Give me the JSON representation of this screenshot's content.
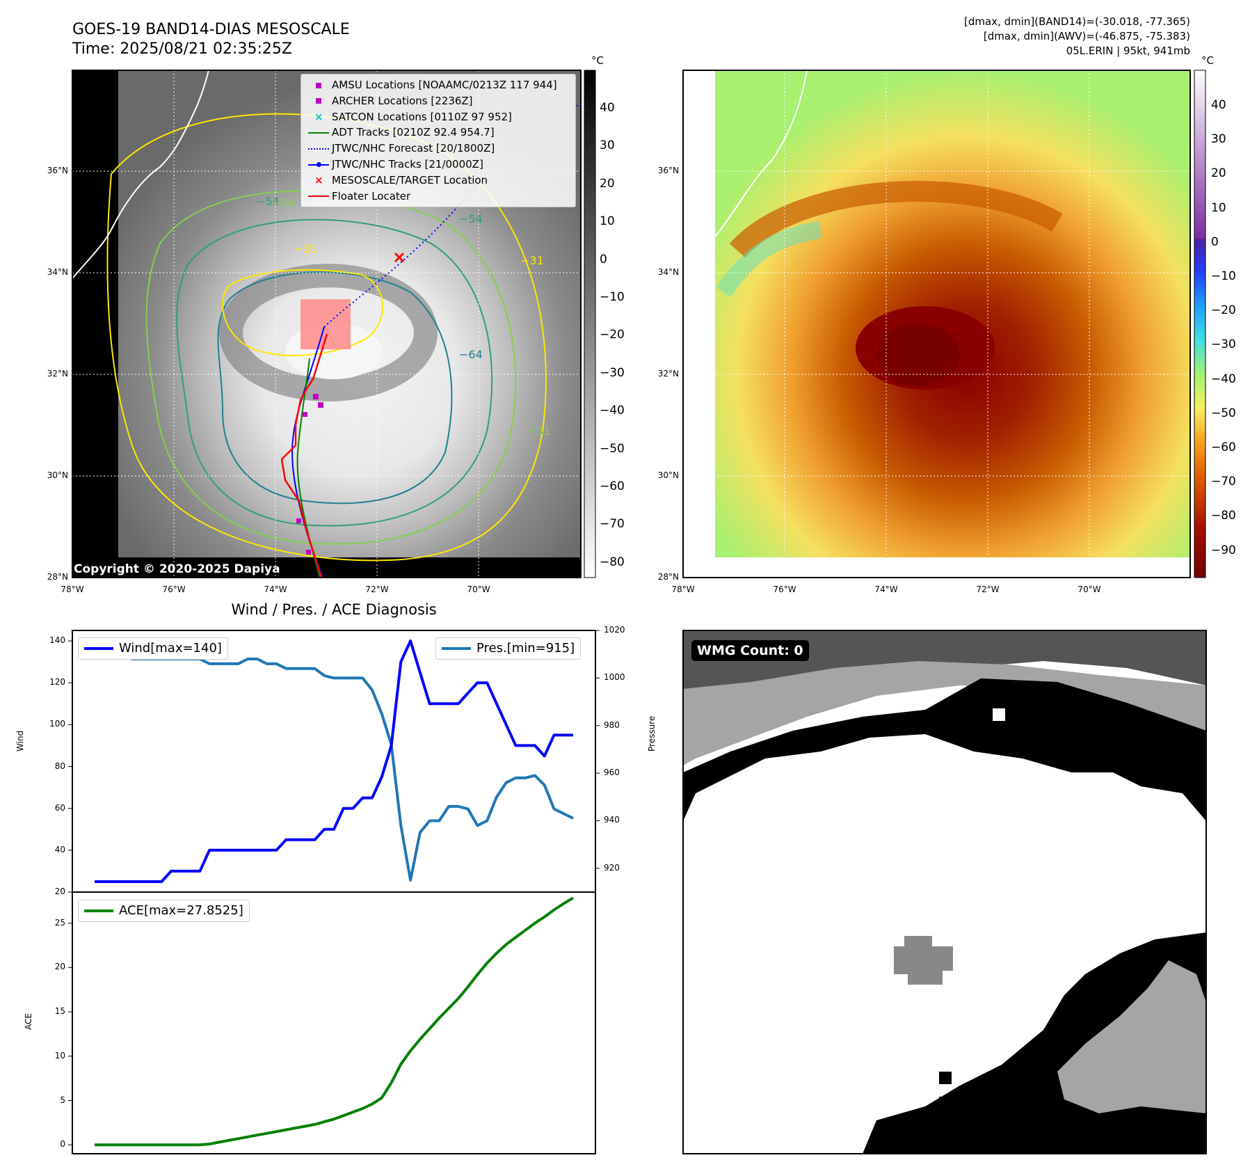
{
  "header": {
    "title_line1": "GOES-19 BAND14-DIAS MESOSCALE",
    "title_line2": "Time: 2025/08/21 02:35:25Z",
    "info_line1": "[dmax, dmin](BAND14)=(-30.018, -77.365)",
    "info_line2": "[dmax, dmin](AWV)=(-46.875, -75.383)",
    "info_line3": "05L.ERIN | 95kt, 941mb"
  },
  "map": {
    "lat_ticks": [
      "36°N",
      "34°N",
      "32°N",
      "30°N",
      "28°N"
    ],
    "lon_ticks": [
      "78°W",
      "76°W",
      "74°W",
      "72°W",
      "70°W"
    ],
    "copyright": "Copyright © 2020-2025 Dapiya",
    "contour_labels": [
      "−54",
      "−54",
      "−31",
      "−31",
      "−54",
      "−64",
      "−31"
    ],
    "legend": [
      {
        "label": "AMSU Locations [NOAAMC/0213Z 117 944]",
        "marker": "square",
        "color": "#c000c0"
      },
      {
        "label": "ARCHER Locations [2236Z]",
        "marker": "square",
        "color": "#c000c0"
      },
      {
        "label": "SATCON Locations [0110Z 97 952]",
        "marker": "x",
        "color": "#00c0c0"
      },
      {
        "label": "ADT Tracks [0210Z 92.4 954.7]",
        "marker": "line",
        "color": "#008000"
      },
      {
        "label": "JTWC/NHC Forecast [20/1800Z]",
        "marker": "dotted",
        "color": "#0000ff"
      },
      {
        "label": "JTWC/NHC Tracks [21/0000Z]",
        "marker": "line-dot",
        "color": "#0000ff"
      },
      {
        "label": "MESOSCALE/TARGET Location",
        "marker": "x",
        "color": "#ff0000"
      },
      {
        "label": "Floater Locater",
        "marker": "line",
        "color": "#ff0000"
      }
    ]
  },
  "colorbar_gray": {
    "unit": "°C",
    "ticks": [
      "40",
      "30",
      "20",
      "10",
      "0",
      "−10",
      "−20",
      "−30",
      "−40",
      "−50",
      "−60",
      "−70",
      "−80"
    ]
  },
  "colorbar_color": {
    "unit": "°C",
    "ticks": [
      "40",
      "30",
      "20",
      "10",
      "0",
      "−10",
      "−20",
      "−30",
      "−40",
      "−50",
      "−60",
      "−70",
      "−80",
      "−90"
    ]
  },
  "chart_data": [
    {
      "type": "line",
      "title": "Wind / Pres. / ACE Diagnosis",
      "ylabel": "Wind",
      "ylabel_right": "Pressure",
      "ylim": [
        20,
        145
      ],
      "ylim_right": [
        910,
        1020
      ],
      "yticks": [
        "140",
        "120",
        "100",
        "80",
        "60",
        "40",
        "20"
      ],
      "yticks_right": [
        "1020",
        "1000",
        "980",
        "960",
        "940",
        "920"
      ],
      "series": [
        {
          "name": "Wind[max=140]",
          "color": "#0000ff",
          "values": [
            25,
            25,
            25,
            25,
            25,
            25,
            25,
            25,
            30,
            30,
            30,
            30,
            40,
            40,
            40,
            40,
            40,
            40,
            40,
            40,
            45,
            45,
            45,
            45,
            50,
            50,
            60,
            60,
            65,
            65,
            75,
            90,
            130,
            140,
            125,
            110,
            110,
            110,
            110,
            115,
            120,
            120,
            110,
            100,
            90,
            90,
            90,
            85,
            95,
            95,
            95
          ]
        },
        {
          "name": "Pres.[min=915]",
          "color": "#1f77b4",
          "values": [
            1015,
            1015,
            1010,
            1009,
            1008,
            1008,
            1008,
            1008,
            1008,
            1008,
            1008,
            1008,
            1006,
            1006,
            1006,
            1006,
            1008,
            1008,
            1006,
            1006,
            1004,
            1004,
            1004,
            1004,
            1001,
            1000,
            1000,
            1000,
            1000,
            995,
            985,
            972,
            938,
            915,
            935,
            940,
            940,
            946,
            946,
            945,
            938,
            940,
            950,
            956,
            958,
            958,
            959,
            955,
            945,
            943,
            941
          ]
        }
      ]
    },
    {
      "type": "line",
      "ylabel": "ACE",
      "ylim": [
        -1,
        28.5
      ],
      "yticks": [
        "25",
        "20",
        "15",
        "10",
        "5",
        "0"
      ],
      "series": [
        {
          "name": "ACE[max=27.8525]",
          "color": "#008000",
          "values": [
            0,
            0,
            0,
            0,
            0,
            0,
            0,
            0,
            0,
            0,
            0,
            0,
            0.1,
            0.3,
            0.5,
            0.7,
            0.9,
            1.1,
            1.3,
            1.5,
            1.7,
            1.9,
            2.1,
            2.3,
            2.6,
            2.9,
            3.3,
            3.7,
            4.1,
            4.6,
            5.3,
            7.0,
            9.1,
            10.6,
            11.9,
            13.1,
            14.3,
            15.4,
            16.5,
            17.8,
            19.2,
            20.5,
            21.6,
            22.6,
            23.4,
            24.2,
            25.0,
            25.7,
            26.5,
            27.2,
            27.85
          ]
        }
      ]
    }
  ],
  "wmg": {
    "label": "WMG Count: 0"
  }
}
